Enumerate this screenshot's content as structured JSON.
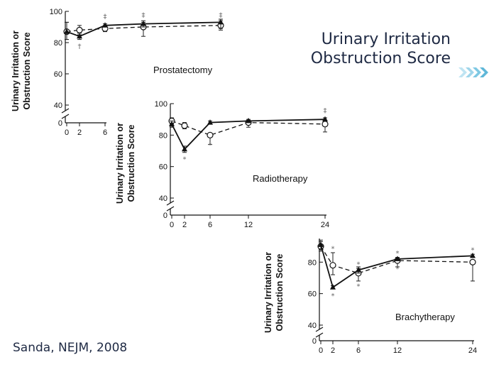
{
  "slide": {
    "title_line1": "Urinary Irritation",
    "title_line2": "Obstruction Score",
    "citation": "Sanda, NEJM, 2008",
    "accent_color": "#7ec8e3",
    "text_color": "#1f2a44"
  },
  "chart_data": [
    {
      "type": "line",
      "panel_label": "Prostatectomy",
      "ylabel_line1": "Urinary Irritation or",
      "ylabel_line2": "Obstruction Score",
      "xlabel": "",
      "x_ticks": [
        0,
        2,
        6
      ],
      "y_ticks": [
        40,
        60,
        80,
        100
      ],
      "ylim": [
        40,
        100
      ],
      "axis_break": true,
      "series": [
        {
          "style": "solid",
          "marker": "filled-triangle",
          "x": [
            0,
            2,
            6,
            12,
            24
          ],
          "y": [
            87,
            84,
            91,
            92,
            93
          ],
          "err_low": [
            5,
            2,
            1,
            2,
            4
          ],
          "err_high": [
            6,
            2,
            1,
            2,
            2
          ]
        },
        {
          "style": "dashed",
          "marker": "open-circle",
          "x": [
            0,
            2,
            6,
            12,
            24
          ],
          "y": [
            87,
            88,
            89,
            90,
            91
          ],
          "err_low": [
            5,
            3,
            2,
            6,
            3
          ],
          "err_high": [
            6,
            3,
            2,
            3,
            3
          ]
        }
      ],
      "annotations": [
        {
          "x": 2,
          "y": 78,
          "text": "†"
        },
        {
          "x": 6,
          "y": 97,
          "text": "‡"
        },
        {
          "x": 12,
          "y": 98,
          "text": "‡"
        },
        {
          "x": 24,
          "y": 98,
          "text": "‡"
        }
      ]
    },
    {
      "type": "line",
      "panel_label": "Radiotherapy",
      "ylabel_line1": "Urinary Irritation or",
      "ylabel_line2": "Obstruction Score",
      "xlabel": "",
      "x_ticks": [
        0,
        2,
        6,
        12,
        24
      ],
      "y_ticks": [
        40,
        60,
        80,
        100
      ],
      "ylim": [
        40,
        100
      ],
      "axis_break": true,
      "series": [
        {
          "style": "solid",
          "marker": "filled-triangle",
          "x": [
            0,
            2,
            6,
            12,
            24
          ],
          "y": [
            87,
            71,
            88,
            89,
            90
          ],
          "err_low": [
            2,
            2,
            1,
            1,
            1
          ],
          "err_high": [
            2,
            2,
            1,
            1,
            1
          ]
        },
        {
          "style": "dashed",
          "marker": "open-circle",
          "x": [
            0,
            2,
            6,
            12,
            24
          ],
          "y": [
            89,
            86,
            80,
            88,
            87
          ],
          "err_low": [
            2,
            2,
            6,
            3,
            5
          ],
          "err_high": [
            2,
            2,
            1,
            1,
            2
          ]
        }
      ],
      "annotations": [
        {
          "x": 2,
          "y": 65,
          "text": "*"
        },
        {
          "x": 6,
          "y": 74,
          "text": "*"
        },
        {
          "x": 24,
          "y": 96,
          "text": "‡"
        }
      ]
    },
    {
      "type": "line",
      "panel_label": "Brachytherapy",
      "ylabel_line1": "Urinary Irritation or",
      "ylabel_line2": "Obstruction Score",
      "xlabel": "",
      "x_ticks": [
        0,
        2,
        6,
        12,
        24
      ],
      "y_ticks": [
        40,
        60,
        80
      ],
      "ylim": [
        40,
        95
      ],
      "axis_break": true,
      "series": [
        {
          "style": "solid",
          "marker": "filled-triangle",
          "x": [
            0,
            2,
            6,
            12,
            24
          ],
          "y": [
            91,
            64,
            75,
            82,
            84
          ],
          "err_low": [
            3,
            1,
            2,
            1,
            1
          ],
          "err_high": [
            3,
            1,
            2,
            1,
            1
          ]
        },
        {
          "style": "dashed",
          "marker": "open-circle",
          "x": [
            0,
            2,
            6,
            12,
            24
          ],
          "y": [
            90,
            78,
            73,
            81,
            80
          ],
          "err_low": [
            3,
            6,
            5,
            4,
            12
          ],
          "err_high": [
            3,
            8,
            3,
            2,
            1
          ]
        }
      ],
      "annotations": [
        {
          "x": 2,
          "y": 89,
          "text": "*"
        },
        {
          "x": 2,
          "y": 59,
          "text": "*"
        },
        {
          "x": 6,
          "y": 79,
          "text": "*"
        },
        {
          "x": 6,
          "y": 65,
          "text": "*"
        },
        {
          "x": 12,
          "y": 86,
          "text": "*"
        },
        {
          "x": 12,
          "y": 76,
          "text": "*"
        },
        {
          "x": 24,
          "y": 88,
          "text": "*"
        }
      ]
    }
  ]
}
